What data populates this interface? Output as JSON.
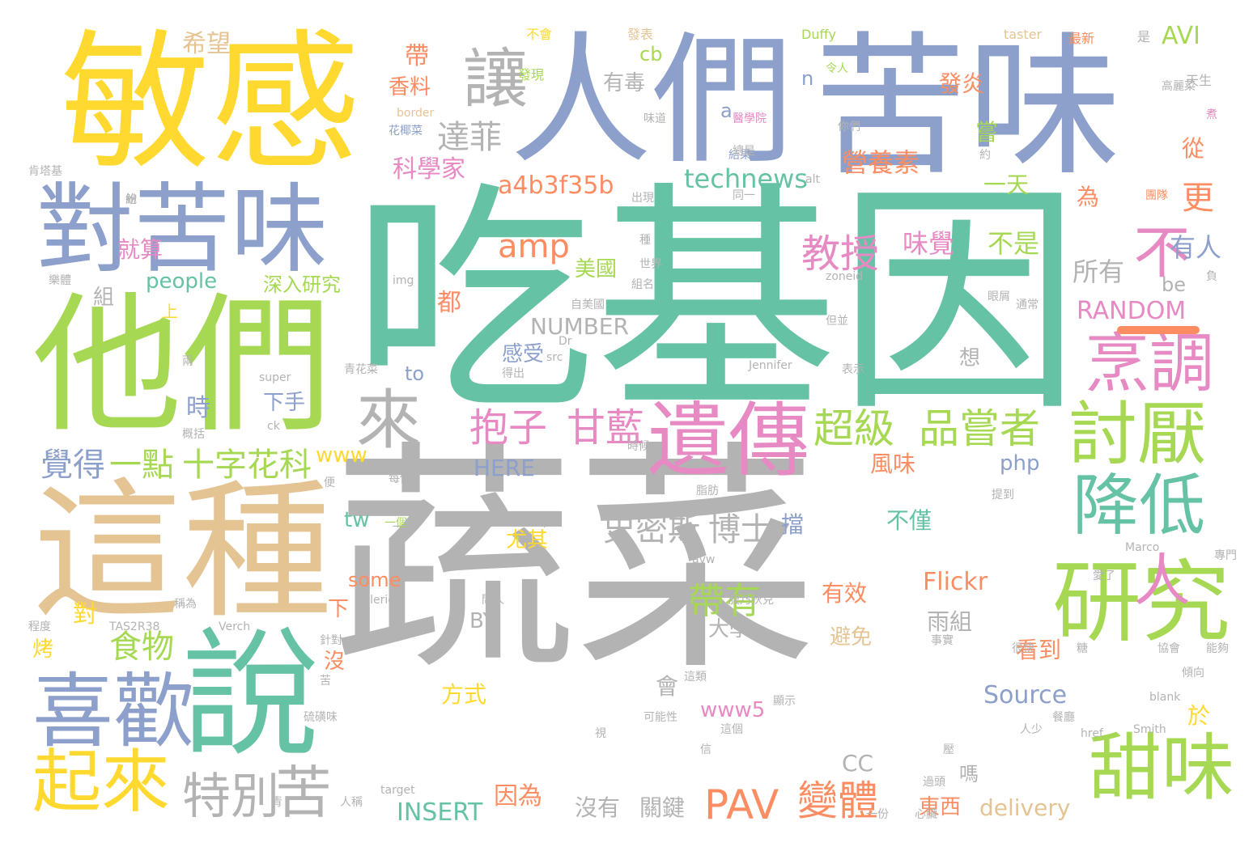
{
  "colors": {
    "green": "#66c2a5",
    "orange": "#fc8d62",
    "blue": "#8da0cb",
    "pink": "#e78ac3",
    "lime": "#a6d854",
    "yellow": "#ffd92f",
    "tan": "#e5c494",
    "gray": "#b3b3b3"
  },
  "words": [
    "蔬菜",
    "吃基因",
    "苦味",
    "人們",
    "敏感",
    "他們",
    "這種",
    "對苦味",
    "遺傳",
    "說",
    "喜歡",
    "讓",
    "研究",
    "甜味",
    "起來",
    "討厭",
    "降低",
    "烹調",
    "超級",
    "品嘗者",
    "來",
    "不",
    "人",
    "抱子",
    "甘藍",
    "教授",
    "特別",
    "苦",
    "覺得",
    "一點",
    "十字花科",
    "食物",
    "帶有",
    "變體",
    "PAV",
    "史密斯",
    "博士",
    "a4b3f35b",
    "amp",
    "達菲",
    "科學家",
    "technews",
    "營養素",
    "味覺",
    "不是",
    "更",
    "有人",
    "所有",
    "RANDOM",
    "NUMBER",
    "AVI",
    "有毒",
    "香料",
    "帶",
    "希望",
    "發炎",
    "嘗",
    "從",
    "為",
    "一天",
    "就算",
    "美國",
    "深入研究",
    "people",
    "組",
    "都",
    "感受",
    "to",
    "下手",
    "時",
    "HERE",
    "www",
    "php",
    "Flickr",
    "tw",
    "不僅",
    "風味",
    "有效",
    "雨組",
    "避免",
    "大學",
    "BY",
    "看到",
    "對",
    "烤",
    "沒",
    "方式",
    "會",
    "Source",
    "www5",
    "於",
    "CC",
    "嗎",
    "因為",
    "沒有",
    "關鍵",
    "東西",
    "delivery",
    "INSERT",
    "some",
    "下",
    "尤其",
    "擋",
    "be",
    "cb",
    "n",
    "a",
    "想",
    "一個",
    "上",
    "發現",
    "不會",
    "發表",
    "Duffy",
    "taster",
    "最新",
    "是",
    "天生",
    "高麗菜",
    "令人",
    "醫學院",
    "結果",
    "你們",
    "花椰菜",
    "border",
    "味道",
    "煮",
    "團隊",
    "總是",
    "約",
    "同一",
    "出現",
    "alt",
    "世界",
    "組名",
    "種",
    "zoneid",
    "img",
    "眼屑",
    "通常",
    "自美國",
    "負",
    "紛",
    "Jennifer",
    "表示",
    "但並",
    "Dr",
    "src",
    "得出",
    "青花菜",
    "super",
    "ck",
    "概括",
    "時候",
    "一樣",
    "每個",
    "便",
    "脂肪",
    "提到",
    "年",
    "接著",
    "專門",
    "Marco",
    "avw",
    "Valerie",
    "問人",
    "稱為",
    "程度",
    "TAS2R38",
    "Verch",
    "針對",
    "事實",
    "很快",
    "糖",
    "協會",
    "能夠",
    "傾向",
    "這類",
    "顯示",
    "苦",
    "可能性",
    "硫磺味",
    "這個",
    "blank",
    "人少",
    "餐廳",
    "Smith",
    "href",
    "信",
    "視",
    "壓",
    "過頭",
    "target",
    "人稱",
    "青",
    "一份",
    "心臟",
    "愛了",
    "腹乃狄克",
    "肯塔基",
    "鮑",
    "樂體",
    "兩",
    "一算"
  ]
}
